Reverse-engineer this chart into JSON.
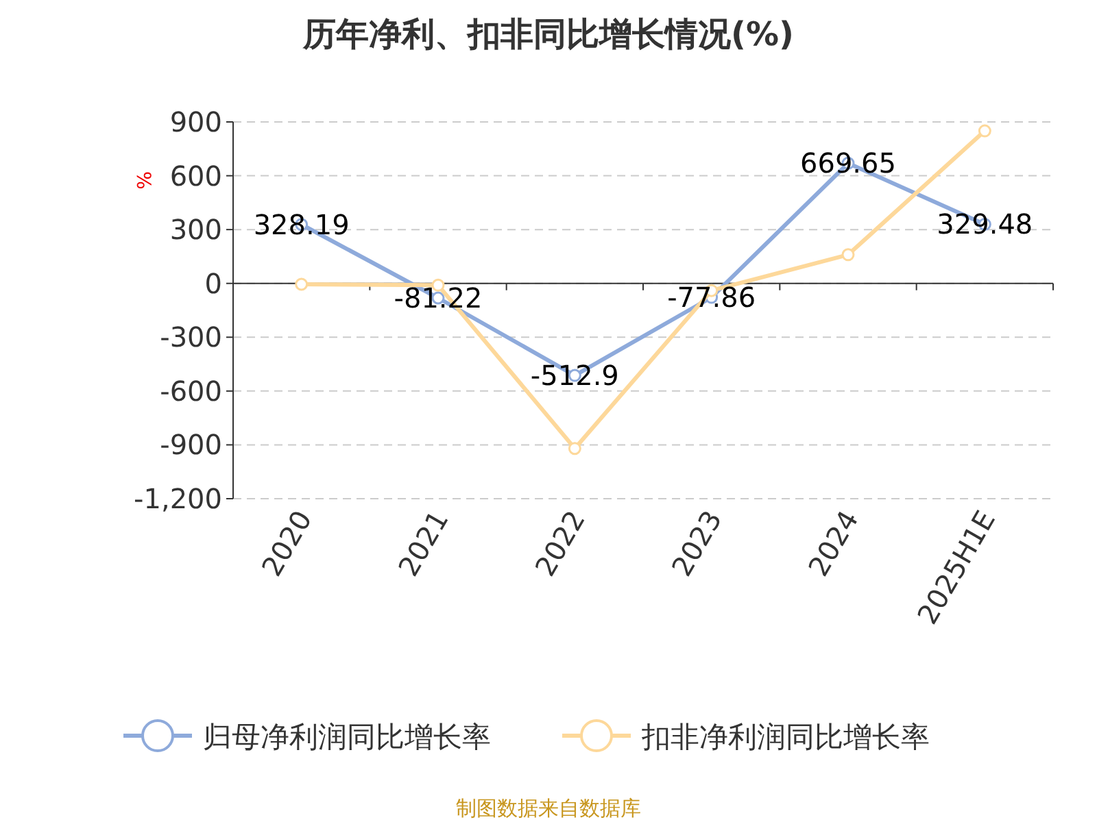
{
  "chart_data": {
    "type": "line",
    "title": "历年净利、扣非同比增长情况(%)",
    "ylabel": "%",
    "categories": [
      "2020",
      "2021",
      "2022",
      "2023",
      "2024",
      "2025H1E"
    ],
    "series": [
      {
        "name": "归母净利润同比增长率",
        "color": "#8eaadb",
        "values": [
          328.19,
          -81.22,
          -512.9,
          -77.86,
          669.65,
          329.48
        ],
        "value_labels": [
          "328.19",
          "-81.22",
          "-512.9",
          "-77.86",
          "669.65",
          "329.48"
        ]
      },
      {
        "name": "扣非净利润同比增长率",
        "color": "#fdd89a",
        "values": [
          -5,
          -10,
          -920,
          -40,
          160,
          850
        ]
      }
    ],
    "ylim": [
      -1200,
      900
    ],
    "yticks": [
      {
        "value": -1200,
        "label": "-1,200"
      },
      -900,
      -600,
      -300,
      0,
      300,
      600,
      900
    ],
    "grid": "y",
    "legend": "bottom",
    "marker": "circle",
    "line_style": "solid",
    "annotations": [
      "制图数据来自数据库"
    ]
  }
}
